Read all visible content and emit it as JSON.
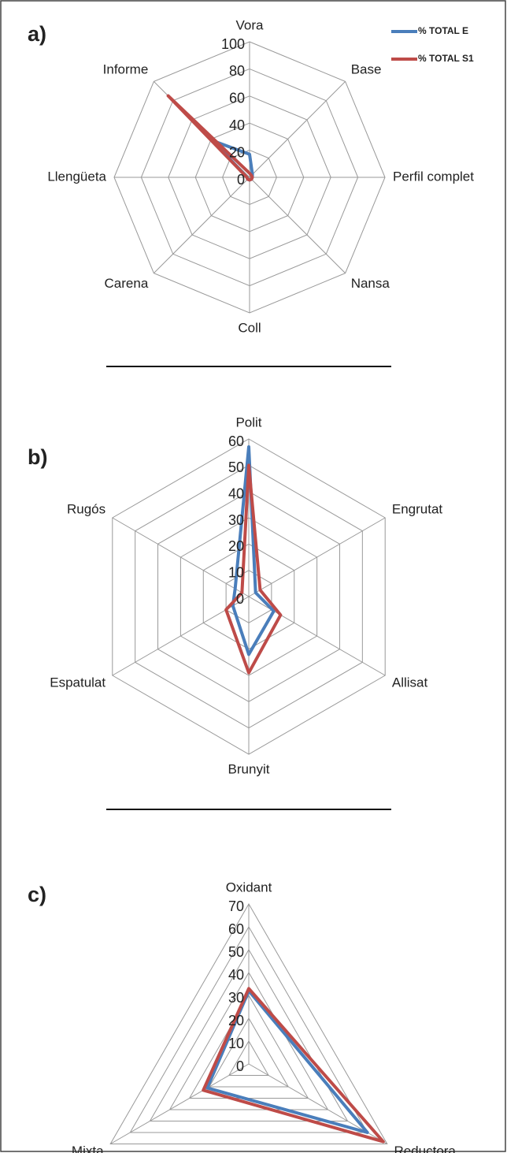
{
  "chart_data": [
    {
      "type": "radar",
      "title": "a)",
      "categories": [
        "Vora",
        "Base",
        "Perfil complet",
        "Nansa",
        "Coll",
        "Carena",
        "Llengüeta",
        "Informe"
      ],
      "series": [
        {
          "name": "% TOTAL E",
          "color": "#4a7ebb",
          "values": [
            17,
            3,
            2,
            2,
            2,
            2,
            2,
            38
          ]
        },
        {
          "name": "% TOTAL S1",
          "color": "#be4b48",
          "values": [
            3,
            2,
            2,
            2,
            2,
            2,
            2,
            85
          ]
        }
      ],
      "ylim": [
        0,
        100
      ],
      "yticks": [
        0,
        20,
        40,
        60,
        80,
        100
      ],
      "legend": "top-right"
    },
    {
      "type": "radar",
      "title": "b)",
      "categories": [
        "Polit",
        "Engrutat",
        "Allisat",
        "Brunyit",
        "Espatulat",
        "Rugós"
      ],
      "series": [
        {
          "color": "#4a7ebb",
          "values": [
            57,
            3,
            11,
            22,
            7,
            6
          ]
        },
        {
          "color": "#be4b48",
          "values": [
            50,
            5,
            14,
            29,
            10,
            3
          ]
        }
      ],
      "ylim": [
        0,
        60
      ],
      "yticks": [
        0,
        10,
        20,
        30,
        40,
        50,
        60
      ]
    },
    {
      "type": "radar",
      "title": "c)",
      "categories": [
        "Oxidant",
        "Reductora",
        "Mixta"
      ],
      "series": [
        {
          "color": "#4a7ebb",
          "values": [
            32,
            60,
            21
          ]
        },
        {
          "color": "#be4b48",
          "values": [
            33,
            68,
            23
          ]
        }
      ],
      "ylim": [
        0,
        70
      ],
      "yticks": [
        0,
        10,
        20,
        30,
        40,
        50,
        60,
        70
      ]
    }
  ]
}
